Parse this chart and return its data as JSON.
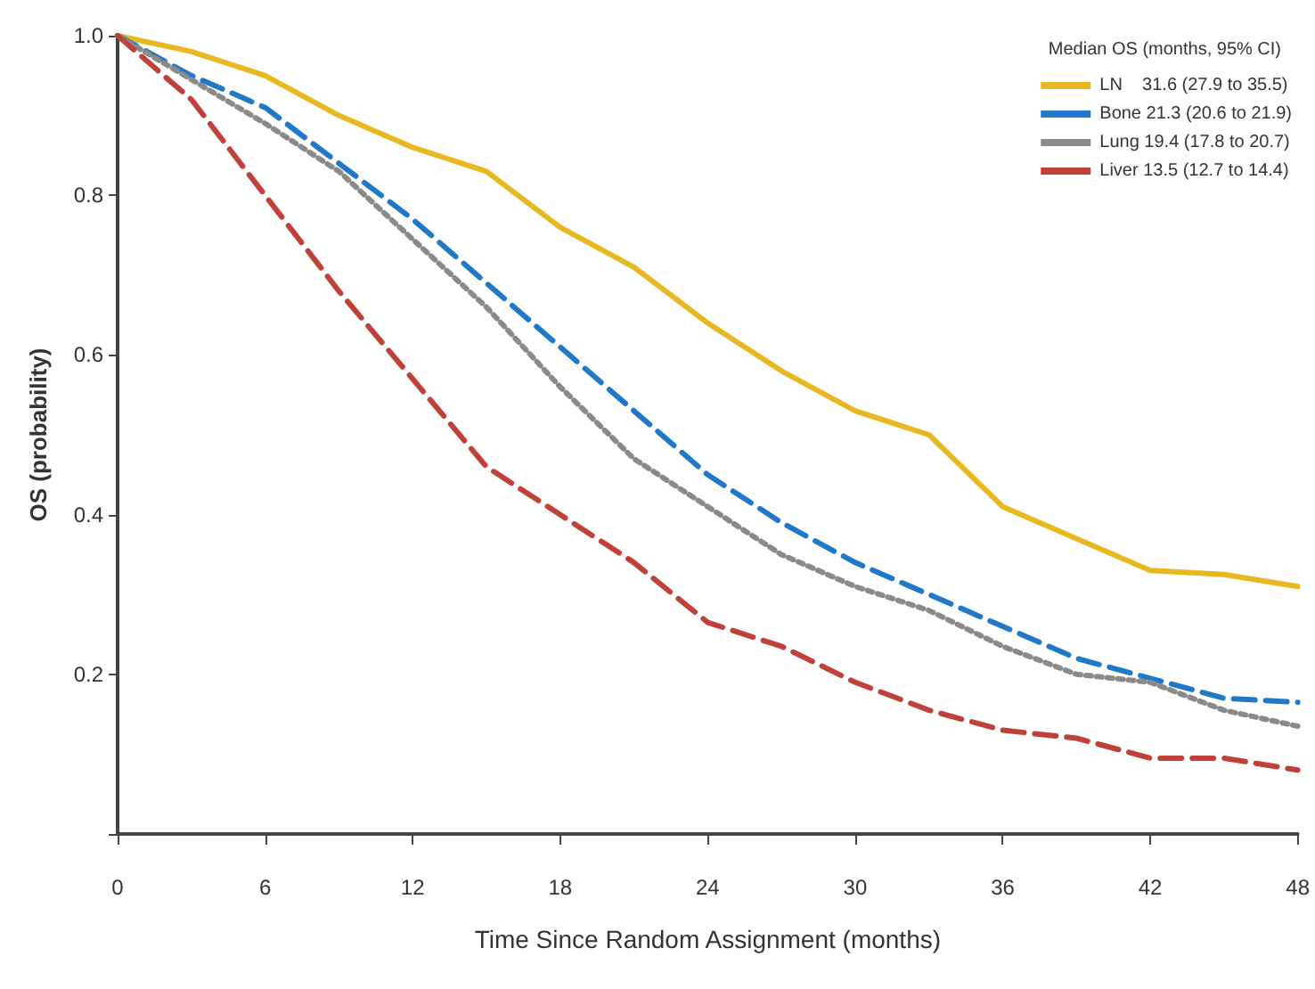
{
  "chart_data": {
    "type": "line",
    "xlabel": "Time Since Random Assignment (months)",
    "ylabel": "OS (probability)",
    "legend_title": "Median OS (months, 95% CI)",
    "x": [
      0,
      3,
      6,
      9,
      12,
      15,
      18,
      21,
      24,
      27,
      30,
      33,
      36,
      39,
      42,
      45,
      48
    ],
    "series": [
      {
        "name": "LN    31.6 (27.9 to 35.5)",
        "color": "#e8b820",
        "line_style": "solid",
        "values": [
          1.0,
          0.98,
          0.95,
          0.9,
          0.86,
          0.83,
          0.76,
          0.71,
          0.64,
          0.58,
          0.53,
          0.5,
          0.41,
          0.37,
          0.33,
          0.325,
          0.31
        ]
      },
      {
        "name": "Bone 21.3 (20.6 to 21.9)",
        "color": "#1f78c8",
        "line_style": "dashed",
        "values": [
          1.0,
          0.95,
          0.91,
          0.84,
          0.77,
          0.69,
          0.61,
          0.53,
          0.45,
          0.39,
          0.34,
          0.3,
          0.26,
          0.22,
          0.195,
          0.17,
          0.165
        ]
      },
      {
        "name": "Lung 19.4 (17.8 to 20.7)",
        "color": "#8a8a8a",
        "line_style": "dotted",
        "values": [
          1.0,
          0.945,
          0.89,
          0.83,
          0.745,
          0.66,
          0.56,
          0.47,
          0.41,
          0.35,
          0.31,
          0.28,
          0.235,
          0.2,
          0.19,
          0.155,
          0.135
        ]
      },
      {
        "name": "Liver 13.5 (12.7 to 14.4)",
        "color": "#c0403a",
        "line_style": "dashed",
        "values": [
          1.0,
          0.92,
          0.8,
          0.68,
          0.57,
          0.46,
          0.4,
          0.34,
          0.265,
          0.235,
          0.19,
          0.155,
          0.13,
          0.12,
          0.095,
          0.095,
          0.08
        ]
      }
    ],
    "xlim": [
      0,
      48
    ],
    "xticks": [
      0,
      6,
      12,
      18,
      24,
      30,
      36,
      42,
      48
    ],
    "ylim": [
      0,
      1
    ],
    "yticks": [
      {
        "value": 0,
        "label": null
      },
      {
        "value": 0.2,
        "label": "0.2"
      },
      {
        "value": 0.4,
        "label": "0.4"
      },
      {
        "value": 0.6,
        "label": "0.6"
      },
      {
        "value": 0.8,
        "label": "0.8"
      },
      {
        "value": 1,
        "label": "1.0"
      }
    ],
    "grid": false,
    "legend": "top right",
    "marker": "none"
  }
}
